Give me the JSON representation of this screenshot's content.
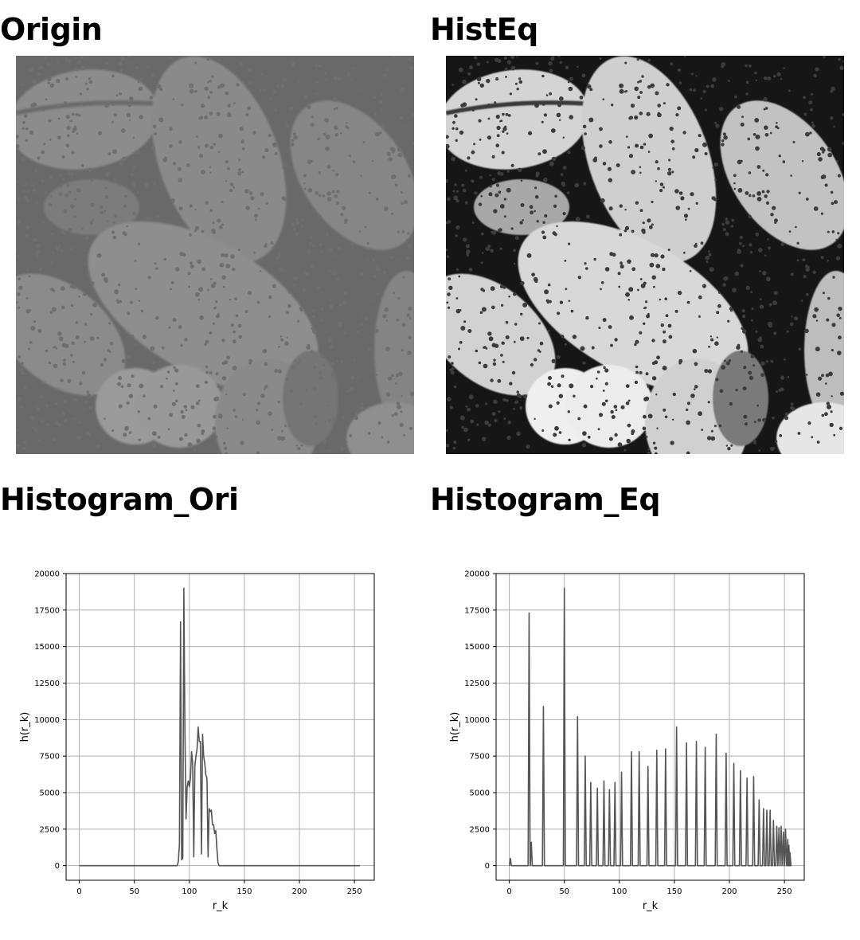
{
  "panels": {
    "origin_title": "Origin",
    "histeq_title": "HistEq",
    "hist_ori_title": "Histogram_Ori",
    "hist_eq_title": "Histogram_Eq"
  },
  "colors": {
    "line": "#555555",
    "grid": "#b0b0b0",
    "origin_bg": "#666666",
    "origin_cell": "#8a8a8a",
    "histeq_bg": "#1a1a1a",
    "histeq_cell": "#d9d9d9"
  },
  "chart_data": [
    {
      "type": "line",
      "title": "",
      "xlabel": "r_k",
      "ylabel": "h(r_k)",
      "xlim": [
        -12,
        268
      ],
      "ylim": [
        -1000,
        20000
      ],
      "xticks": [
        0,
        50,
        100,
        150,
        200,
        250
      ],
      "yticks": [
        0,
        2500,
        5000,
        7500,
        10000,
        12500,
        15000,
        17500,
        20000
      ],
      "grid": true,
      "series": [
        {
          "x": [
            0,
            89,
            90,
            91,
            92,
            93,
            94,
            95,
            96,
            97,
            98,
            99,
            100,
            101,
            102,
            103,
            104,
            105,
            106,
            107,
            108,
            109,
            110,
            111,
            112,
            113,
            114,
            115,
            116,
            117,
            118,
            119,
            120,
            121,
            122,
            123,
            124,
            125,
            126,
            127,
            128,
            129,
            130,
            131,
            132,
            133,
            134,
            135,
            136,
            255
          ],
          "y": [
            0,
            0,
            300,
            1500,
            16700,
            400,
            500,
            19000,
            9000,
            3200,
            5400,
            5800,
            5400,
            6000,
            7800,
            7000,
            600,
            6800,
            7500,
            8000,
            9500,
            8500,
            8500,
            800,
            9000,
            7500,
            7000,
            6200,
            6000,
            600,
            3900,
            3700,
            3800,
            2800,
            2800,
            2200,
            2400,
            1200,
            200,
            0,
            0,
            0,
            0,
            0,
            0,
            0,
            0,
            0,
            0,
            0
          ]
        }
      ]
    },
    {
      "type": "line",
      "title": "",
      "xlabel": "r_k",
      "ylabel": "h(r_k)",
      "xlim": [
        -12,
        268
      ],
      "ylim": [
        -1000,
        20000
      ],
      "xticks": [
        0,
        50,
        100,
        150,
        200,
        250
      ],
      "yticks": [
        0,
        2500,
        5000,
        7500,
        10000,
        12500,
        15000,
        17500,
        20000
      ],
      "grid": true,
      "series": [
        {
          "spike_x": [
            1,
            18,
            20,
            31,
            50,
            62,
            69,
            74,
            80,
            86,
            91,
            96,
            102,
            111,
            118,
            126,
            134,
            142,
            152,
            161,
            170,
            178,
            188,
            197,
            204,
            210,
            216,
            222,
            227,
            231,
            234,
            237,
            240,
            243,
            245,
            247,
            249,
            251,
            253,
            254,
            255
          ],
          "spike_y": [
            500,
            17300,
            1600,
            10900,
            19000,
            10200,
            7500,
            5700,
            5300,
            5800,
            5200,
            5700,
            6400,
            7800,
            7800,
            6800,
            7900,
            8000,
            9500,
            8400,
            8500,
            8100,
            9000,
            7700,
            7000,
            6500,
            6000,
            6100,
            4500,
            3900,
            3800,
            3800,
            3100,
            2700,
            2600,
            2700,
            2300,
            2500,
            1800,
            1400,
            900
          ]
        }
      ]
    }
  ]
}
